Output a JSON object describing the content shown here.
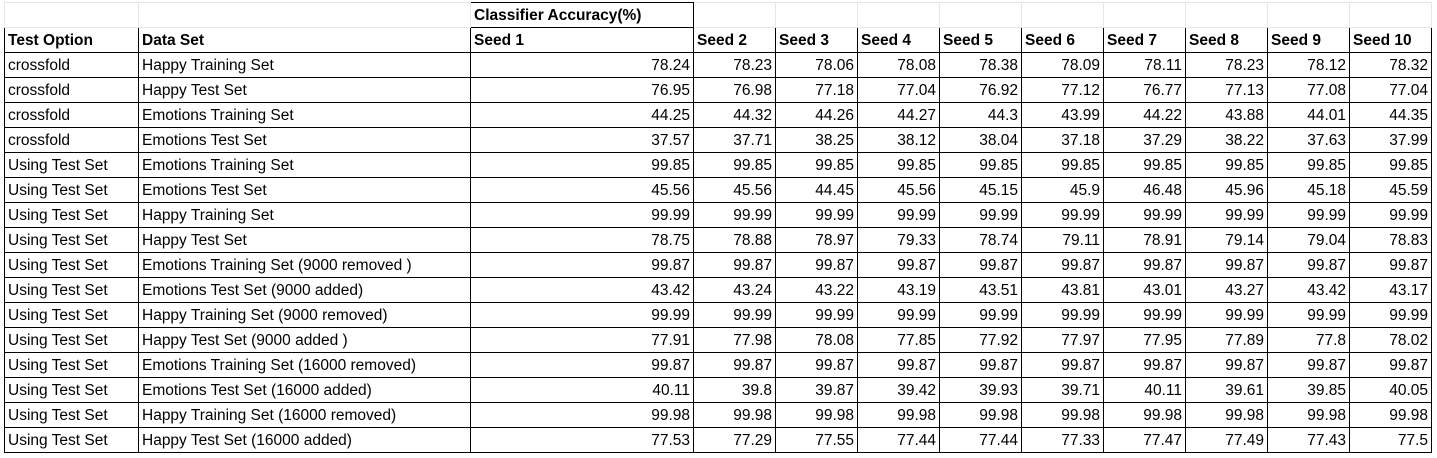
{
  "table": {
    "group_header": "Classifier Accuracy(%)",
    "columns": [
      "Test Option",
      "Data Set",
      "Seed 1",
      "Seed 2",
      "Seed 3",
      "Seed 4",
      "Seed 5",
      "Seed 6",
      "Seed 7",
      "Seed 8",
      "Seed 9",
      "Seed 10"
    ],
    "rows": [
      [
        "crossfold",
        "Happy Training Set",
        "78.24",
        "78.23",
        "78.06",
        "78.08",
        "78.38",
        "78.09",
        "78.11",
        "78.23",
        "78.12",
        "78.32"
      ],
      [
        "crossfold",
        "Happy Test Set",
        "76.95",
        "76.98",
        "77.18",
        "77.04",
        "76.92",
        "77.12",
        "76.77",
        "77.13",
        "77.08",
        "77.04"
      ],
      [
        "crossfold",
        "Emotions Training Set",
        "44.25",
        "44.32",
        "44.26",
        "44.27",
        "44.3",
        "43.99",
        "44.22",
        "43.88",
        "44.01",
        "44.35"
      ],
      [
        "crossfold",
        "Emotions Test Set",
        "37.57",
        "37.71",
        "38.25",
        "38.12",
        "38.04",
        "37.18",
        "37.29",
        "38.22",
        "37.63",
        "37.99"
      ],
      [
        "Using Test Set",
        "Emotions Training Set",
        "99.85",
        "99.85",
        "99.85",
        "99.85",
        "99.85",
        "99.85",
        "99.85",
        "99.85",
        "99.85",
        "99.85"
      ],
      [
        "Using Test Set",
        "Emotions Test Set",
        "45.56",
        "45.56",
        "44.45",
        "45.56",
        "45.15",
        "45.9",
        "46.48",
        "45.96",
        "45.18",
        "45.59"
      ],
      [
        "Using Test Set",
        "Happy Training Set",
        "99.99",
        "99.99",
        "99.99",
        "99.99",
        "99.99",
        "99.99",
        "99.99",
        "99.99",
        "99.99",
        "99.99"
      ],
      [
        "Using Test Set",
        "Happy Test Set",
        "78.75",
        "78.88",
        "78.97",
        "79.33",
        "78.74",
        "79.11",
        "78.91",
        "79.14",
        "79.04",
        "78.83"
      ],
      [
        "Using Test Set",
        "Emotions Training Set (9000 removed )",
        "99.87",
        "99.87",
        "99.87",
        "99.87",
        "99.87",
        "99.87",
        "99.87",
        "99.87",
        "99.87",
        "99.87"
      ],
      [
        "Using Test Set",
        "Emotions Test Set (9000 added)",
        "43.42",
        "43.24",
        "43.22",
        "43.19",
        "43.51",
        "43.81",
        "43.01",
        "43.27",
        "43.42",
        "43.17"
      ],
      [
        "Using Test Set",
        "Happy Training Set (9000 removed)",
        "99.99",
        "99.99",
        "99.99",
        "99.99",
        "99.99",
        "99.99",
        "99.99",
        "99.99",
        "99.99",
        "99.99"
      ],
      [
        "Using Test Set",
        "Happy Test Set (9000 added )",
        "77.91",
        "77.98",
        "78.08",
        "77.85",
        "77.92",
        "77.97",
        "77.95",
        "77.89",
        "77.8",
        "78.02"
      ],
      [
        "Using Test Set",
        "Emotions Training Set (16000 removed)",
        "99.87",
        "99.87",
        "99.87",
        "99.87",
        "99.87",
        "99.87",
        "99.87",
        "99.87",
        "99.87",
        "99.87"
      ],
      [
        "Using Test Set",
        "Emotions Test Set (16000 added)",
        "40.11",
        "39.8",
        "39.87",
        "39.42",
        "39.93",
        "39.71",
        "40.11",
        "39.61",
        "39.85",
        "40.05"
      ],
      [
        "Using Test Set",
        "Happy Training Set (16000 removed)",
        "99.98",
        "99.98",
        "99.98",
        "99.98",
        "99.98",
        "99.98",
        "99.98",
        "99.98",
        "99.98",
        "99.98"
      ],
      [
        "Using Test Set",
        "Happy Test Set (16000 added)",
        "77.53",
        "77.29",
        "77.55",
        "77.44",
        "77.44",
        "77.33",
        "77.47",
        "77.49",
        "77.43",
        "77.5"
      ]
    ]
  }
}
